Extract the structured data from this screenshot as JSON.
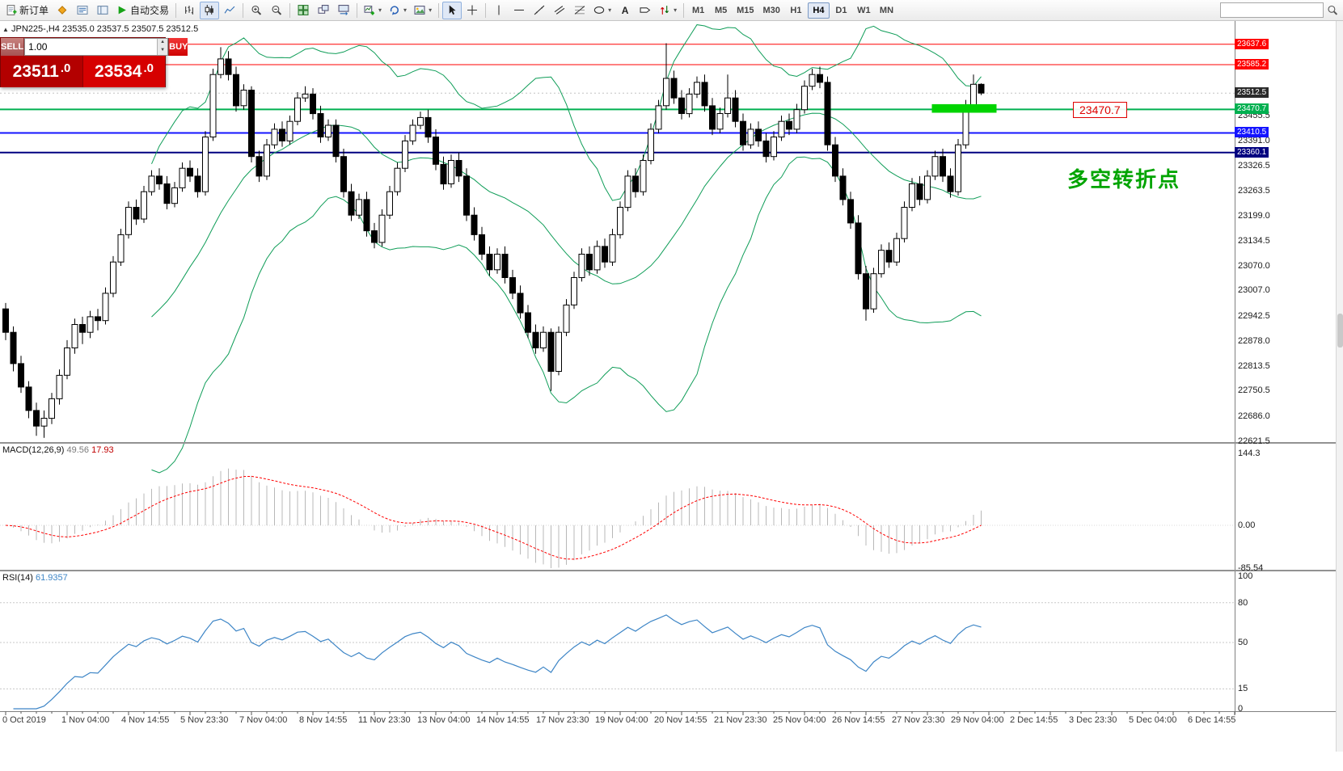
{
  "toolbar": {
    "new_order": "新订单",
    "autotrade": "自动交易",
    "timeframes": [
      "M1",
      "M5",
      "M15",
      "M30",
      "H1",
      "H4",
      "D1",
      "W1",
      "MN"
    ],
    "active_timeframe": "H4",
    "text_tool_glyph": "A"
  },
  "glyphs": {
    "caret": "▾",
    "spinner_up": "▲",
    "spinner_down": "▼",
    "symbol_arrow": "▲"
  },
  "chart": {
    "title_symbol": "JPN225-,H4",
    "title_ohlc": "23535.0 23537.5 23507.5 23512.5",
    "trade_panel": {
      "sell": "SELL",
      "buy": "BUY",
      "volume": "1.00",
      "sell_price_main": "23511",
      "sell_price_frac": ".0",
      "buy_price_main": "23534",
      "buy_price_frac": ".0"
    },
    "callout": "23470.7",
    "annotation": "多空转折点"
  },
  "macd_panel": {
    "title": "MACD(12,26,9)",
    "value_main": "49.56",
    "value_signal": "17.93"
  },
  "rsi_panel": {
    "title": "RSI(14)",
    "value": "61.9357"
  },
  "chart_data": {
    "type": "candlestick",
    "symbol": "JPN225-",
    "timeframe": "H4",
    "last_price": 23512.5,
    "y_range": [
      22619,
      23697
    ],
    "price_axis_ticks": [
      23455.5,
      23391.0,
      23326.5,
      23263.5,
      23199.0,
      23134.5,
      23070.0,
      23007.0,
      22942.5,
      22878.0,
      22813.5,
      22750.5,
      22686.0,
      22621.5
    ],
    "hlines": [
      {
        "price": 23637.6,
        "color": "#ff0000",
        "width": 1
      },
      {
        "price": 23585.2,
        "color": "#ff0000",
        "width": 1
      },
      {
        "price": 23470.7,
        "color": "#00b050",
        "width": 2
      },
      {
        "price": 23410.5,
        "color": "#1414ff",
        "width": 2
      },
      {
        "price": 23360.1,
        "color": "#000080",
        "width": 2
      }
    ],
    "highlight_box": {
      "bar_start": 121,
      "bar_end": 129,
      "price_top": 23484,
      "price_bottom": 23462,
      "color": "#00d400"
    },
    "bollinger": {
      "period": 20,
      "deviation": 2,
      "color": "#0f9d58"
    },
    "macd": {
      "fast": 12,
      "slow": 26,
      "signal": 9,
      "current": [
        49.56,
        17.93
      ],
      "axis_labels": [
        "144.3",
        "0.00",
        "-85.54"
      ],
      "histogram_color": "#b8b8b8",
      "signal_color": "#ff0000"
    },
    "rsi": {
      "period": 14,
      "current": 61.9357,
      "levels": [
        80,
        50,
        15
      ],
      "axis_labels": [
        "100",
        "80",
        "50",
        "15",
        "0"
      ],
      "color": "#3d85c6"
    },
    "time_labels": [
      "0 Oct 2019",
      "1 Nov 04:00",
      "4 Nov 14:55",
      "5 Nov 23:30",
      "7 Nov 04:00",
      "8 Nov 14:55",
      "11 Nov 23:30",
      "13 Nov 04:00",
      "14 Nov 14:55",
      "17 Nov 23:30",
      "19 Nov 04:00",
      "20 Nov 14:55",
      "21 Nov 23:30",
      "25 Nov 04:00",
      "26 Nov 14:55",
      "27 Nov 23:30",
      "29 Nov 04:00",
      "2 Dec 14:55",
      "3 Dec 23:30",
      "5 Dec 04:00",
      "6 Dec 14:55"
    ],
    "ohlc": [
      [
        22960,
        22975,
        22880,
        22900
      ],
      [
        22900,
        22915,
        22800,
        22820
      ],
      [
        22820,
        22840,
        22745,
        22760
      ],
      [
        22760,
        22775,
        22680,
        22700
      ],
      [
        22700,
        22720,
        22635,
        22660
      ],
      [
        22660,
        22700,
        22630,
        22680
      ],
      [
        22680,
        22745,
        22665,
        22730
      ],
      [
        22730,
        22805,
        22715,
        22790
      ],
      [
        22790,
        22880,
        22780,
        22860
      ],
      [
        22860,
        22935,
        22845,
        22920
      ],
      [
        22920,
        22940,
        22870,
        22900
      ],
      [
        22900,
        22955,
        22885,
        22940
      ],
      [
        22940,
        22960,
        22905,
        22930
      ],
      [
        22930,
        23015,
        22920,
        23000
      ],
      [
        23000,
        23095,
        22990,
        23080
      ],
      [
        23080,
        23165,
        23070,
        23150
      ],
      [
        23150,
        23235,
        23140,
        23220
      ],
      [
        23220,
        23240,
        23175,
        23190
      ],
      [
        23190,
        23275,
        23180,
        23260
      ],
      [
        23260,
        23315,
        23250,
        23300
      ],
      [
        23300,
        23320,
        23265,
        23280
      ],
      [
        23280,
        23300,
        23215,
        23230
      ],
      [
        23230,
        23285,
        23220,
        23270
      ],
      [
        23270,
        23335,
        23260,
        23320
      ],
      [
        23320,
        23340,
        23285,
        23300
      ],
      [
        23300,
        23320,
        23245,
        23260
      ],
      [
        23260,
        23415,
        23250,
        23400
      ],
      [
        23400,
        23575,
        23390,
        23560
      ],
      [
        23560,
        23630,
        23550,
        23600
      ],
      [
        23600,
        23620,
        23545,
        23560
      ],
      [
        23560,
        23580,
        23465,
        23480
      ],
      [
        23480,
        23535,
        23470,
        23520
      ],
      [
        23520,
        23530,
        23335,
        23350
      ],
      [
        23350,
        23365,
        23285,
        23300
      ],
      [
        23300,
        23395,
        23290,
        23380
      ],
      [
        23380,
        23435,
        23370,
        23420
      ],
      [
        23420,
        23440,
        23375,
        23390
      ],
      [
        23390,
        23455,
        23380,
        23440
      ],
      [
        23440,
        23515,
        23430,
        23500
      ],
      [
        23500,
        23530,
        23490,
        23510
      ],
      [
        23510,
        23525,
        23445,
        23460
      ],
      [
        23460,
        23480,
        23385,
        23400
      ],
      [
        23400,
        23445,
        23390,
        23430
      ],
      [
        23430,
        23445,
        23335,
        23350
      ],
      [
        23350,
        23370,
        23245,
        23260
      ],
      [
        23260,
        23280,
        23185,
        23200
      ],
      [
        23200,
        23255,
        23190,
        23240
      ],
      [
        23240,
        23260,
        23145,
        23160
      ],
      [
        23160,
        23180,
        23115,
        23130
      ],
      [
        23130,
        23215,
        23120,
        23200
      ],
      [
        23200,
        23275,
        23190,
        23260
      ],
      [
        23260,
        23335,
        23250,
        23320
      ],
      [
        23320,
        23405,
        23310,
        23390
      ],
      [
        23390,
        23445,
        23380,
        23430
      ],
      [
        23430,
        23465,
        23420,
        23450
      ],
      [
        23450,
        23470,
        23385,
        23400
      ],
      [
        23400,
        23420,
        23315,
        23330
      ],
      [
        23330,
        23350,
        23265,
        23280
      ],
      [
        23280,
        23355,
        23270,
        23340
      ],
      [
        23340,
        23360,
        23285,
        23300
      ],
      [
        23300,
        23320,
        23185,
        23200
      ],
      [
        23200,
        23220,
        23135,
        23150
      ],
      [
        23150,
        23170,
        23085,
        23100
      ],
      [
        23100,
        23120,
        23045,
        23060
      ],
      [
        23060,
        23115,
        23050,
        23100
      ],
      [
        23100,
        23120,
        23025,
        23040
      ],
      [
        23040,
        23060,
        22985,
        23000
      ],
      [
        23000,
        23020,
        22935,
        22950
      ],
      [
        22950,
        22970,
        22885,
        22900
      ],
      [
        22900,
        22920,
        22845,
        22860
      ],
      [
        22860,
        22915,
        22850,
        22900
      ],
      [
        22900,
        22910,
        22750,
        22800
      ],
      [
        22800,
        22915,
        22790,
        22900
      ],
      [
        22900,
        22985,
        22890,
        22970
      ],
      [
        22970,
        23055,
        22960,
        23040
      ],
      [
        23040,
        23115,
        23030,
        23100
      ],
      [
        23100,
        23120,
        23045,
        23060
      ],
      [
        23060,
        23135,
        23050,
        23120
      ],
      [
        23120,
        23140,
        23065,
        23080
      ],
      [
        23080,
        23165,
        23070,
        23150
      ],
      [
        23150,
        23235,
        23140,
        23220
      ],
      [
        23220,
        23315,
        23210,
        23300
      ],
      [
        23300,
        23320,
        23245,
        23260
      ],
      [
        23260,
        23355,
        23250,
        23340
      ],
      [
        23340,
        23435,
        23330,
        23420
      ],
      [
        23420,
        23495,
        23410,
        23480
      ],
      [
        23480,
        23640,
        23470,
        23550
      ],
      [
        23550,
        23570,
        23485,
        23500
      ],
      [
        23500,
        23520,
        23445,
        23460
      ],
      [
        23460,
        23525,
        23450,
        23510
      ],
      [
        23510,
        23555,
        23500,
        23540
      ],
      [
        23540,
        23560,
        23465,
        23480
      ],
      [
        23480,
        23500,
        23405,
        23420
      ],
      [
        23420,
        23475,
        23410,
        23460
      ],
      [
        23460,
        23560,
        23450,
        23500
      ],
      [
        23500,
        23520,
        23425,
        23440
      ],
      [
        23440,
        23460,
        23365,
        23380
      ],
      [
        23380,
        23435,
        23370,
        23420
      ],
      [
        23420,
        23440,
        23375,
        23390
      ],
      [
        23390,
        23410,
        23335,
        23350
      ],
      [
        23350,
        23415,
        23340,
        23400
      ],
      [
        23400,
        23455,
        23390,
        23440
      ],
      [
        23440,
        23460,
        23405,
        23420
      ],
      [
        23420,
        23485,
        23410,
        23470
      ],
      [
        23470,
        23545,
        23460,
        23530
      ],
      [
        23530,
        23575,
        23520,
        23560
      ],
      [
        23560,
        23580,
        23525,
        23540
      ],
      [
        23540,
        23555,
        23365,
        23380
      ],
      [
        23380,
        23400,
        23285,
        23300
      ],
      [
        23300,
        23320,
        23225,
        23240
      ],
      [
        23240,
        23260,
        23165,
        23180
      ],
      [
        23180,
        23200,
        23035,
        23050
      ],
      [
        23050,
        23070,
        22930,
        22960
      ],
      [
        22960,
        23065,
        22950,
        23050
      ],
      [
        23050,
        23125,
        23040,
        23110
      ],
      [
        23110,
        23130,
        23065,
        23080
      ],
      [
        23080,
        23155,
        23070,
        23140
      ],
      [
        23140,
        23235,
        23130,
        23220
      ],
      [
        23220,
        23295,
        23210,
        23280
      ],
      [
        23280,
        23300,
        23225,
        23240
      ],
      [
        23240,
        23315,
        23230,
        23300
      ],
      [
        23300,
        23365,
        23290,
        23350
      ],
      [
        23350,
        23370,
        23285,
        23300
      ],
      [
        23300,
        23320,
        23245,
        23260
      ],
      [
        23260,
        23395,
        23250,
        23380
      ],
      [
        23380,
        23495,
        23370,
        23480
      ],
      [
        23480,
        23560,
        23470,
        23535
      ],
      [
        23535,
        23537.5,
        23507.5,
        23512.5
      ]
    ]
  }
}
